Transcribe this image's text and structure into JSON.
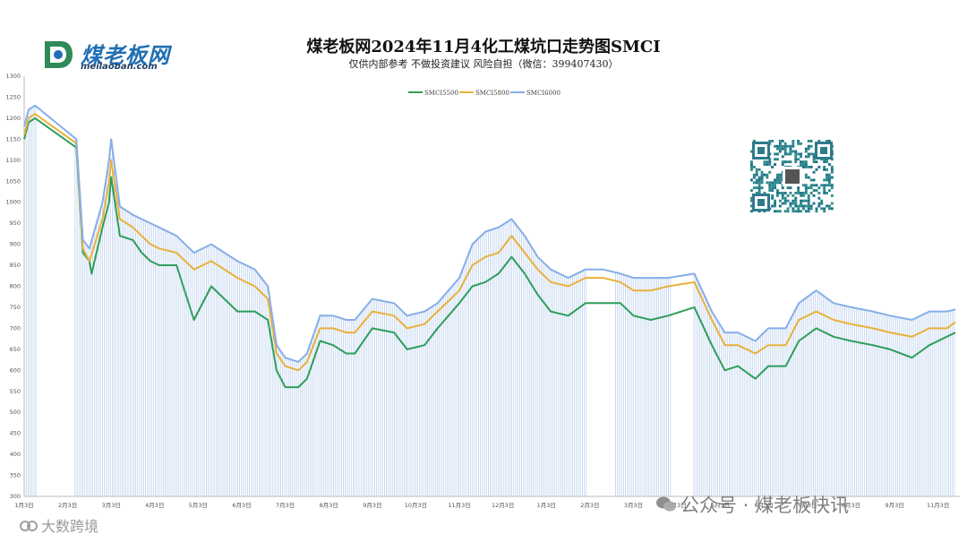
{
  "header": {
    "title": "煤老板网2024年11月4化工煤坑口走势图SMCI",
    "subtitle": "仅供内部参考 不做投资建议 风险自担（微信：399407430）"
  },
  "logo": {
    "name_cn": "煤老板网",
    "domain": "meilaoban.com"
  },
  "watermarks": {
    "right": "公众号 · 煤老板快讯",
    "left": "大数跨境"
  },
  "colors": {
    "green": "#2e9e5b",
    "orange": "#e9b13b",
    "blue": "#86aee8",
    "bars": "#bcd0ee",
    "axis": "#bbbbbb"
  },
  "chart_data": {
    "type": "line",
    "title": "煤老板网2024年11月4化工煤坑口走势图SMCI",
    "subtitle": "仅供内部参考 不做投资建议 风险自担（微信：399407430）",
    "legend_position": "top",
    "grid": false,
    "ylim": [
      300,
      1300
    ],
    "y_ticks": [
      300,
      350,
      400,
      450,
      500,
      550,
      600,
      650,
      700,
      750,
      800,
      850,
      900,
      950,
      1000,
      1050,
      1100,
      1150,
      1200,
      1250,
      1300
    ],
    "xlim": [
      0,
      21.5
    ],
    "x_ticks": [
      {
        "pos": 0,
        "label": "1月3日"
      },
      {
        "pos": 1,
        "label": "2月3日"
      },
      {
        "pos": 2,
        "label": "3月3日"
      },
      {
        "pos": 3,
        "label": "4月3日"
      },
      {
        "pos": 4,
        "label": "5月3日"
      },
      {
        "pos": 5,
        "label": "6月3日"
      },
      {
        "pos": 6,
        "label": "7月3日"
      },
      {
        "pos": 7,
        "label": "8月3日"
      },
      {
        "pos": 8,
        "label": "9月3日"
      },
      {
        "pos": 9,
        "label": "10月3日"
      },
      {
        "pos": 10,
        "label": "11月3日"
      },
      {
        "pos": 11,
        "label": "12月3日"
      },
      {
        "pos": 12,
        "label": "1月3日"
      },
      {
        "pos": 13,
        "label": "2月3日"
      },
      {
        "pos": 14,
        "label": "3月3日"
      },
      {
        "pos": 15,
        "label": "4月3日"
      },
      {
        "pos": 16,
        "label": "5月3日"
      },
      {
        "pos": 17,
        "label": "6月3日"
      },
      {
        "pos": 18,
        "label": "7月3日"
      },
      {
        "pos": 19,
        "label": "8月3日"
      },
      {
        "pos": 20,
        "label": "9月3日"
      },
      {
        "pos": 21,
        "label": "11月3日"
      }
    ],
    "series": [
      {
        "name": "SMCI5500",
        "color": "#2e9e5b",
        "points": [
          [
            0,
            1150
          ],
          [
            0.1,
            1190
          ],
          [
            0.25,
            1200
          ],
          [
            1.2,
            1130
          ],
          [
            1.35,
            880
          ],
          [
            1.5,
            860
          ],
          [
            1.55,
            830
          ],
          [
            1.8,
            940
          ],
          [
            1.95,
            1000
          ],
          [
            2.0,
            1060
          ],
          [
            2.2,
            920
          ],
          [
            2.5,
            910
          ],
          [
            2.7,
            880
          ],
          [
            2.9,
            860
          ],
          [
            3.1,
            850
          ],
          [
            3.5,
            850
          ],
          [
            3.9,
            720
          ],
          [
            4.3,
            800
          ],
          [
            4.6,
            770
          ],
          [
            4.9,
            740
          ],
          [
            5.3,
            740
          ],
          [
            5.6,
            720
          ],
          [
            5.8,
            600
          ],
          [
            6.0,
            560
          ],
          [
            6.3,
            560
          ],
          [
            6.5,
            580
          ],
          [
            6.8,
            670
          ],
          [
            7.1,
            660
          ],
          [
            7.4,
            640
          ],
          [
            7.6,
            640
          ],
          [
            8.0,
            700
          ],
          [
            8.5,
            690
          ],
          [
            8.8,
            650
          ],
          [
            9.2,
            660
          ],
          [
            9.5,
            700
          ],
          [
            10.0,
            760
          ],
          [
            10.3,
            800
          ],
          [
            10.6,
            810
          ],
          [
            10.9,
            830
          ],
          [
            11.2,
            870
          ],
          [
            11.5,
            830
          ],
          [
            11.8,
            780
          ],
          [
            12.1,
            740
          ],
          [
            12.5,
            730
          ],
          [
            12.9,
            760
          ],
          [
            13.3,
            760
          ],
          [
            13.7,
            760
          ],
          [
            14.0,
            730
          ],
          [
            14.4,
            720
          ],
          [
            14.8,
            730
          ],
          [
            15.4,
            750
          ],
          [
            15.8,
            660
          ],
          [
            16.1,
            600
          ],
          [
            16.4,
            610
          ],
          [
            16.8,
            580
          ],
          [
            17.1,
            610
          ],
          [
            17.5,
            610
          ],
          [
            17.8,
            670
          ],
          [
            18.2,
            700
          ],
          [
            18.6,
            680
          ],
          [
            19.0,
            670
          ],
          [
            19.5,
            660
          ],
          [
            19.9,
            650
          ],
          [
            20.4,
            630
          ],
          [
            20.8,
            660
          ],
          [
            21.2,
            680
          ],
          [
            21.4,
            690
          ]
        ]
      },
      {
        "name": "SMCI5800",
        "color": "#e9b13b",
        "points": [
          [
            0,
            1160
          ],
          [
            0.1,
            1200
          ],
          [
            0.25,
            1210
          ],
          [
            1.2,
            1140
          ],
          [
            1.35,
            890
          ],
          [
            1.5,
            860
          ],
          [
            1.8,
            960
          ],
          [
            1.95,
            1050
          ],
          [
            2.0,
            1100
          ],
          [
            2.2,
            960
          ],
          [
            2.5,
            940
          ],
          [
            2.7,
            920
          ],
          [
            2.9,
            900
          ],
          [
            3.1,
            890
          ],
          [
            3.5,
            880
          ],
          [
            3.9,
            840
          ],
          [
            4.3,
            860
          ],
          [
            4.6,
            840
          ],
          [
            4.9,
            820
          ],
          [
            5.3,
            800
          ],
          [
            5.6,
            770
          ],
          [
            5.8,
            640
          ],
          [
            6.0,
            610
          ],
          [
            6.3,
            600
          ],
          [
            6.5,
            620
          ],
          [
            6.8,
            700
          ],
          [
            7.1,
            700
          ],
          [
            7.4,
            690
          ],
          [
            7.6,
            690
          ],
          [
            8.0,
            740
          ],
          [
            8.5,
            730
          ],
          [
            8.8,
            700
          ],
          [
            9.2,
            710
          ],
          [
            9.5,
            740
          ],
          [
            10.0,
            790
          ],
          [
            10.3,
            850
          ],
          [
            10.6,
            870
          ],
          [
            10.9,
            880
          ],
          [
            11.2,
            920
          ],
          [
            11.5,
            880
          ],
          [
            11.8,
            840
          ],
          [
            12.1,
            810
          ],
          [
            12.5,
            800
          ],
          [
            12.9,
            820
          ],
          [
            13.3,
            820
          ],
          [
            13.7,
            810
          ],
          [
            14.0,
            790
          ],
          [
            14.4,
            790
          ],
          [
            14.8,
            800
          ],
          [
            15.4,
            810
          ],
          [
            15.8,
            720
          ],
          [
            16.1,
            660
          ],
          [
            16.4,
            660
          ],
          [
            16.8,
            640
          ],
          [
            17.1,
            660
          ],
          [
            17.5,
            660
          ],
          [
            17.8,
            720
          ],
          [
            18.2,
            740
          ],
          [
            18.6,
            720
          ],
          [
            19.0,
            710
          ],
          [
            19.5,
            700
          ],
          [
            19.9,
            690
          ],
          [
            20.4,
            680
          ],
          [
            20.8,
            700
          ],
          [
            21.2,
            700
          ],
          [
            21.4,
            715
          ]
        ]
      },
      {
        "name": "SMCI6000",
        "color": "#86aee8",
        "points": [
          [
            0,
            1180
          ],
          [
            0.1,
            1220
          ],
          [
            0.25,
            1230
          ],
          [
            1.2,
            1150
          ],
          [
            1.35,
            910
          ],
          [
            1.5,
            890
          ],
          [
            1.8,
            1000
          ],
          [
            1.95,
            1100
          ],
          [
            2.0,
            1150
          ],
          [
            2.2,
            990
          ],
          [
            2.5,
            970
          ],
          [
            2.7,
            960
          ],
          [
            2.9,
            950
          ],
          [
            3.1,
            940
          ],
          [
            3.5,
            920
          ],
          [
            3.9,
            880
          ],
          [
            4.3,
            900
          ],
          [
            4.6,
            880
          ],
          [
            4.9,
            860
          ],
          [
            5.3,
            840
          ],
          [
            5.6,
            800
          ],
          [
            5.8,
            660
          ],
          [
            6.0,
            630
          ],
          [
            6.3,
            620
          ],
          [
            6.5,
            640
          ],
          [
            6.8,
            730
          ],
          [
            7.1,
            730
          ],
          [
            7.4,
            720
          ],
          [
            7.6,
            720
          ],
          [
            8.0,
            770
          ],
          [
            8.5,
            760
          ],
          [
            8.8,
            730
          ],
          [
            9.2,
            740
          ],
          [
            9.5,
            760
          ],
          [
            10.0,
            820
          ],
          [
            10.3,
            900
          ],
          [
            10.6,
            930
          ],
          [
            10.9,
            940
          ],
          [
            11.2,
            960
          ],
          [
            11.5,
            920
          ],
          [
            11.8,
            870
          ],
          [
            12.1,
            840
          ],
          [
            12.5,
            820
          ],
          [
            12.9,
            840
          ],
          [
            13.3,
            840
          ],
          [
            13.7,
            830
          ],
          [
            14.0,
            820
          ],
          [
            14.4,
            820
          ],
          [
            14.8,
            820
          ],
          [
            15.4,
            830
          ],
          [
            15.8,
            740
          ],
          [
            16.1,
            690
          ],
          [
            16.4,
            690
          ],
          [
            16.8,
            670
          ],
          [
            17.1,
            700
          ],
          [
            17.5,
            700
          ],
          [
            17.8,
            760
          ],
          [
            18.2,
            790
          ],
          [
            18.6,
            760
          ],
          [
            19.0,
            750
          ],
          [
            19.5,
            740
          ],
          [
            19.9,
            730
          ],
          [
            20.4,
            720
          ],
          [
            20.8,
            740
          ],
          [
            21.2,
            740
          ],
          [
            21.4,
            745
          ]
        ]
      }
    ]
  }
}
